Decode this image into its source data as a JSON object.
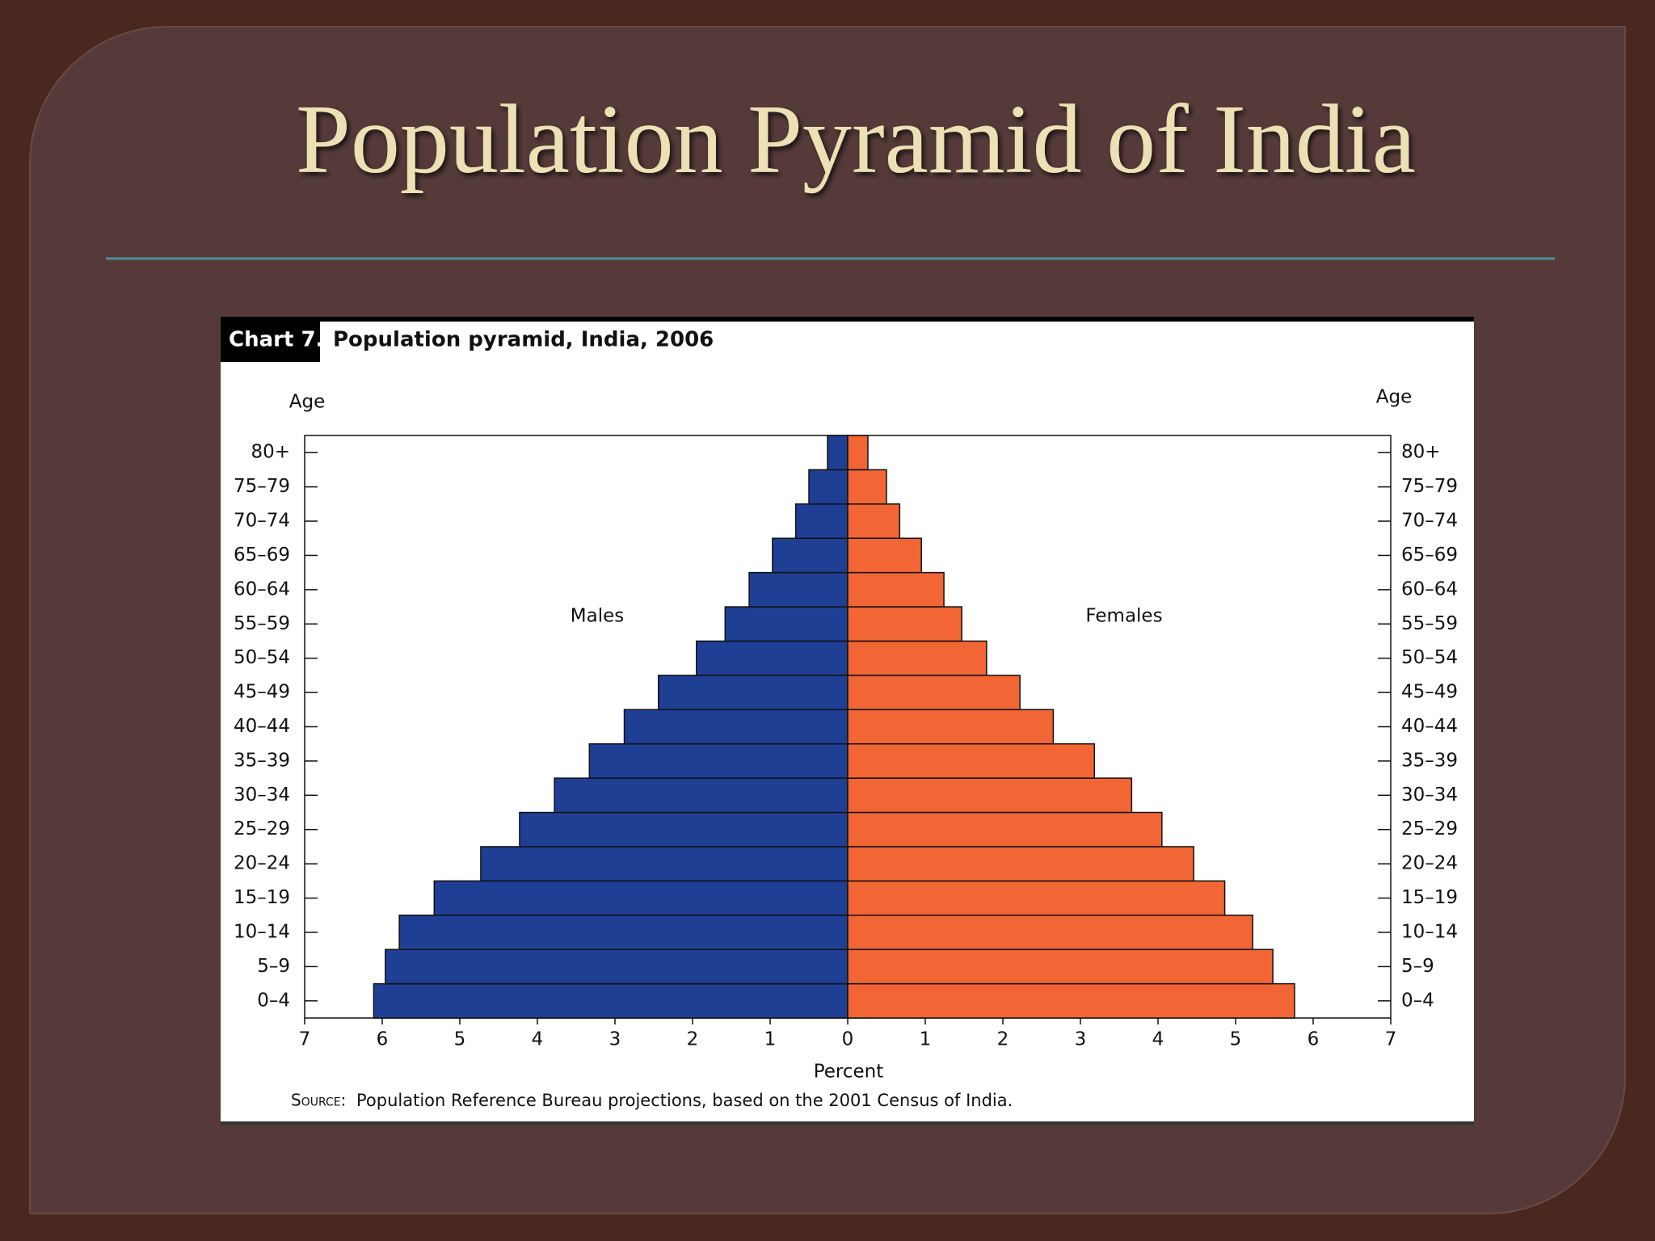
{
  "slide_title": "Population Pyramid of India",
  "chart_data": {
    "type": "pyramid",
    "chart_label": "Chart 7.",
    "title": "Population pyramid, India, 2006",
    "left_axis_label": "Age",
    "right_axis_label": "Age",
    "x_label": "Percent",
    "source_label": "Source:",
    "source": "Population Reference Bureau projections, based on the 2001 Census of India.",
    "categories": [
      "0–4",
      "5–9",
      "10–14",
      "15–19",
      "20–24",
      "25–29",
      "30–34",
      "35–39",
      "40–44",
      "45–49",
      "50–54",
      "55–59",
      "60–64",
      "65–69",
      "70–74",
      "75–79",
      "80+"
    ],
    "series": [
      {
        "name": "Males",
        "color": "#1f3f94",
        "values": [
          6.11,
          5.96,
          5.78,
          5.33,
          4.73,
          4.23,
          3.78,
          3.33,
          2.88,
          2.44,
          1.95,
          1.58,
          1.27,
          0.97,
          0.67,
          0.5,
          0.26
        ]
      },
      {
        "name": "Females",
        "color": "#f26535",
        "values": [
          5.76,
          5.48,
          5.22,
          4.86,
          4.46,
          4.05,
          3.66,
          3.18,
          2.65,
          2.22,
          1.79,
          1.47,
          1.24,
          0.95,
          0.67,
          0.5,
          0.26
        ]
      }
    ],
    "xlim": [
      -7,
      7
    ],
    "xticks": [
      {
        "value": -7,
        "label": "7"
      },
      {
        "value": -6,
        "label": "6"
      },
      {
        "value": -5,
        "label": "5"
      },
      {
        "value": -4,
        "label": "4"
      },
      {
        "value": -3,
        "label": "3"
      },
      {
        "value": -2,
        "label": "2"
      },
      {
        "value": -1,
        "label": "1"
      },
      0,
      1,
      2,
      3,
      4,
      5,
      6,
      7
    ]
  }
}
